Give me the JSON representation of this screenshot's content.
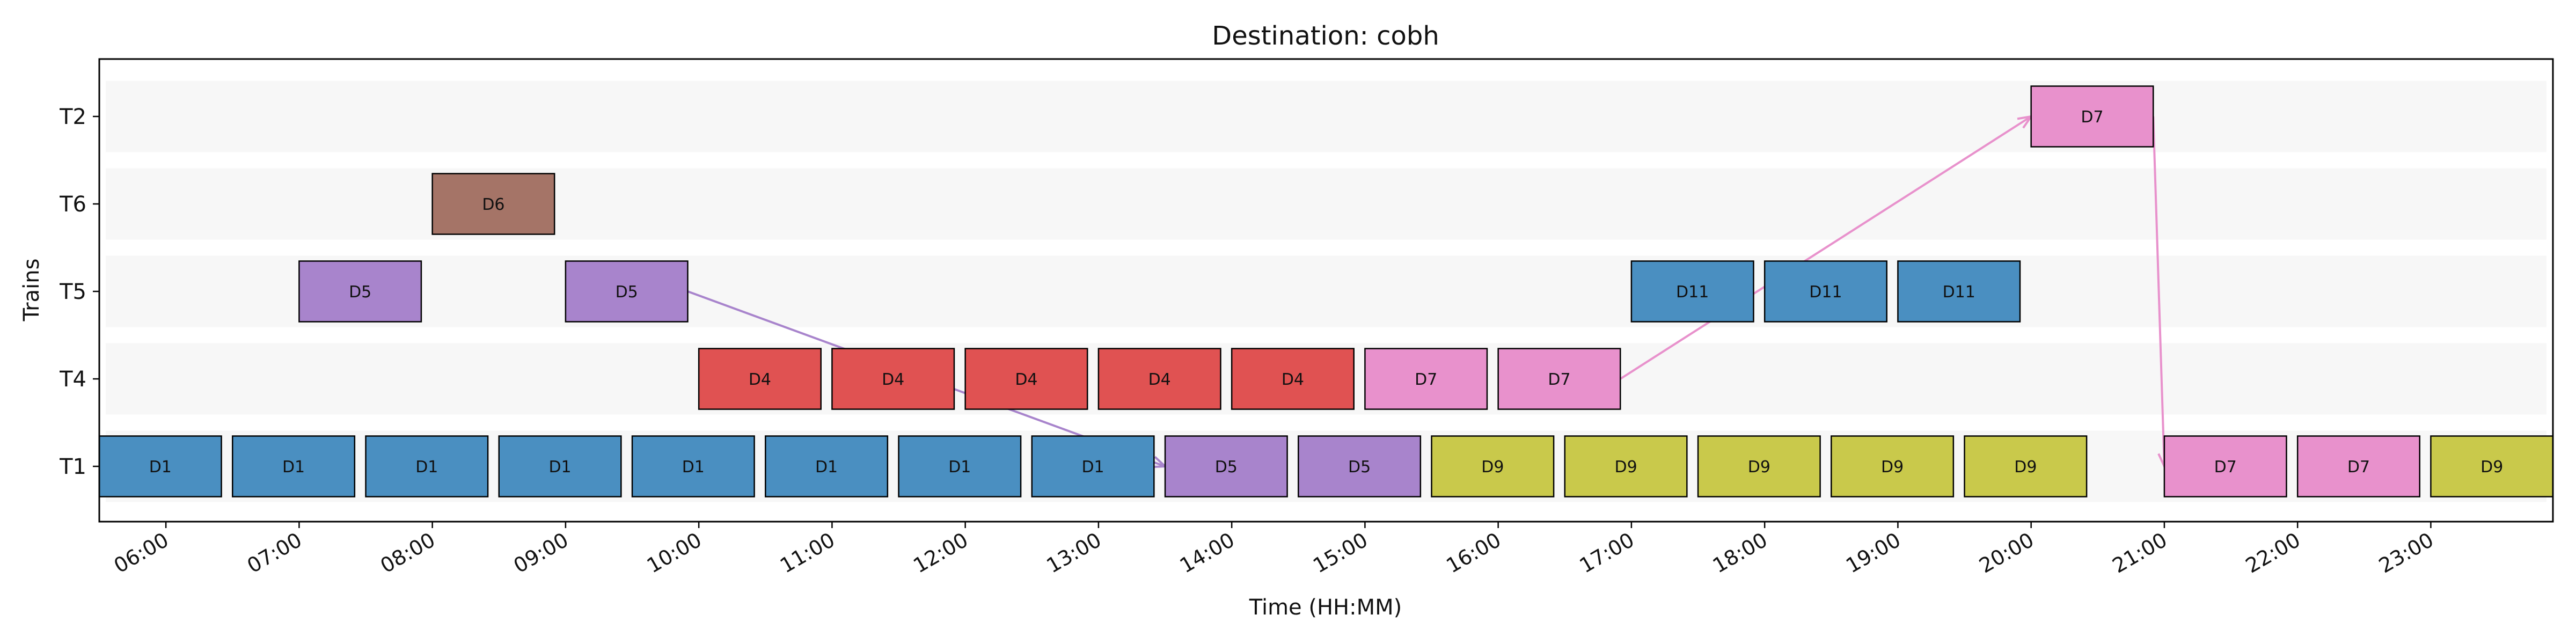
{
  "chart_data": {
    "type": "gantt",
    "title": "Destination: cobh",
    "xlabel": "Time (HH:MM)",
    "ylabel": "Trains",
    "x_range": [
      "05:30",
      "23:55"
    ],
    "x_ticks": [
      "06:00",
      "07:00",
      "08:00",
      "09:00",
      "10:00",
      "11:00",
      "12:00",
      "13:00",
      "14:00",
      "15:00",
      "16:00",
      "17:00",
      "18:00",
      "19:00",
      "20:00",
      "21:00",
      "22:00",
      "23:00"
    ],
    "trains": [
      "T2",
      "T6",
      "T5",
      "T4",
      "T1"
    ],
    "colors": {
      "D1": "#4a8fc1",
      "D4": "#e05252",
      "D5": "#a884cc",
      "D6": "#a57467",
      "D7": "#e891cc",
      "D9": "#c9c94b",
      "D11": "#4a8fc1"
    },
    "row_band_color": "#f7f7f7",
    "blocks": [
      {
        "train": "T2",
        "label": "D7",
        "start": "20:00",
        "end": "20:55"
      },
      {
        "train": "T6",
        "label": "D6",
        "start": "08:00",
        "end": "08:55"
      },
      {
        "train": "T5",
        "label": "D5",
        "start": "07:00",
        "end": "07:55"
      },
      {
        "train": "T5",
        "label": "D5",
        "start": "09:00",
        "end": "09:55"
      },
      {
        "train": "T5",
        "label": "D11",
        "start": "17:00",
        "end": "17:55"
      },
      {
        "train": "T5",
        "label": "D11",
        "start": "18:00",
        "end": "18:55"
      },
      {
        "train": "T5",
        "label": "D11",
        "start": "19:00",
        "end": "19:55"
      },
      {
        "train": "T4",
        "label": "D4",
        "start": "10:00",
        "end": "10:55"
      },
      {
        "train": "T4",
        "label": "D4",
        "start": "11:00",
        "end": "11:55"
      },
      {
        "train": "T4",
        "label": "D4",
        "start": "12:00",
        "end": "12:55"
      },
      {
        "train": "T4",
        "label": "D4",
        "start": "13:00",
        "end": "13:55"
      },
      {
        "train": "T4",
        "label": "D4",
        "start": "14:00",
        "end": "14:55"
      },
      {
        "train": "T4",
        "label": "D7",
        "start": "15:00",
        "end": "15:55"
      },
      {
        "train": "T4",
        "label": "D7",
        "start": "16:00",
        "end": "16:55"
      },
      {
        "train": "T1",
        "label": "D1",
        "start": "05:30",
        "end": "06:25"
      },
      {
        "train": "T1",
        "label": "D1",
        "start": "06:30",
        "end": "07:25"
      },
      {
        "train": "T1",
        "label": "D1",
        "start": "07:30",
        "end": "08:25"
      },
      {
        "train": "T1",
        "label": "D1",
        "start": "08:30",
        "end": "09:25"
      },
      {
        "train": "T1",
        "label": "D1",
        "start": "09:30",
        "end": "10:25"
      },
      {
        "train": "T1",
        "label": "D1",
        "start": "10:30",
        "end": "11:25"
      },
      {
        "train": "T1",
        "label": "D1",
        "start": "11:30",
        "end": "12:25"
      },
      {
        "train": "T1",
        "label": "D1",
        "start": "12:30",
        "end": "13:25"
      },
      {
        "train": "T1",
        "label": "D5",
        "start": "13:30",
        "end": "14:25"
      },
      {
        "train": "T1",
        "label": "D5",
        "start": "14:30",
        "end": "15:25"
      },
      {
        "train": "T1",
        "label": "D9",
        "start": "15:30",
        "end": "16:25"
      },
      {
        "train": "T1",
        "label": "D9",
        "start": "16:30",
        "end": "17:25"
      },
      {
        "train": "T1",
        "label": "D9",
        "start": "17:30",
        "end": "18:25"
      },
      {
        "train": "T1",
        "label": "D9",
        "start": "18:30",
        "end": "19:25"
      },
      {
        "train": "T1",
        "label": "D9",
        "start": "19:30",
        "end": "20:25"
      },
      {
        "train": "T1",
        "label": "D7",
        "start": "21:00",
        "end": "21:55"
      },
      {
        "train": "T1",
        "label": "D7",
        "start": "22:00",
        "end": "22:55"
      },
      {
        "train": "T1",
        "label": "D9",
        "start": "23:00",
        "end": "23:55"
      }
    ],
    "transfers": [
      {
        "label": "D5",
        "from_train": "T5",
        "from_time": "09:55",
        "to_train": "T1",
        "to_time": "13:30"
      },
      {
        "label": "D7",
        "from_train": "T4",
        "from_time": "16:55",
        "to_train": "T2",
        "to_time": "20:00"
      },
      {
        "label": "D7",
        "from_train": "T2",
        "from_time": "20:55",
        "to_train": "T1",
        "to_time": "21:00"
      }
    ],
    "grid": false,
    "legend": "none"
  }
}
